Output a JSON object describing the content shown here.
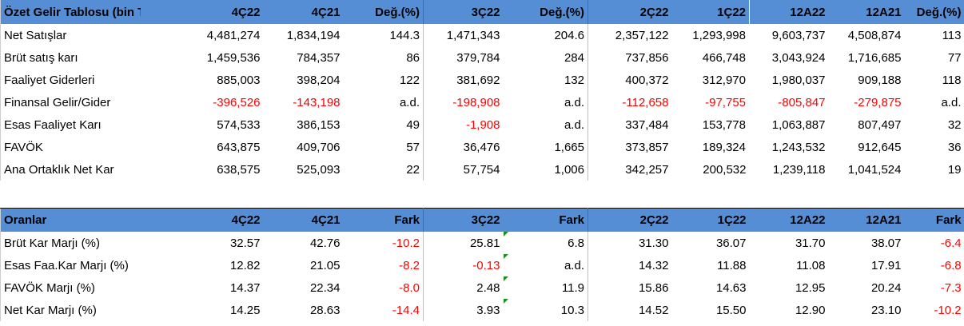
{
  "income": {
    "headers": [
      "Özet Gelir Tablosu (bin TL)",
      "4Ç22",
      "4Ç21",
      "Değ.(%)",
      "3Ç22",
      "Değ.(%)",
      "2Ç22",
      "1Ç22",
      "12A22",
      "12A21",
      "Değ.(%)"
    ],
    "rows": [
      [
        "Net Satışlar",
        "4,481,274",
        "1,834,194",
        "144.3",
        "1,471,343",
        "204.6",
        "2,357,122",
        "1,293,998",
        "9,603,737",
        "4,508,874",
        "113"
      ],
      [
        "Brüt satış karı",
        "1,459,536",
        "784,357",
        "86",
        "379,784",
        "284",
        "737,856",
        "466,748",
        "3,043,924",
        "1,716,685",
        "77"
      ],
      [
        "Faaliyet Giderleri",
        "885,003",
        "398,204",
        "122",
        "381,692",
        "132",
        "400,372",
        "312,970",
        "1,980,037",
        "909,188",
        "118"
      ],
      [
        "Finansal Gelir/Gider",
        "-396,526",
        "-143,198",
        "a.d.",
        "-198,908",
        "a.d.",
        "-112,658",
        "-97,755",
        "-805,847",
        "-279,875",
        "a.d."
      ],
      [
        "Esas Faaliyet Karı",
        "574,533",
        "386,153",
        "49",
        "-1,908",
        "a.d.",
        "337,484",
        "153,778",
        "1,063,887",
        "807,497",
        "32"
      ],
      [
        "FAVÖK",
        "643,875",
        "409,706",
        "57",
        "36,476",
        "1,665",
        "373,857",
        "189,324",
        "1,243,532",
        "912,645",
        "36"
      ],
      [
        "Ana Ortaklık Net Kar",
        "638,575",
        "525,093",
        "22",
        "57,754",
        "1,006",
        "342,257",
        "200,532",
        "1,239,118",
        "1,041,524",
        "19"
      ]
    ]
  },
  "ratios": {
    "headers": [
      "Oranlar",
      "4Ç22",
      "4Ç21",
      "Fark",
      "3Ç22",
      "Fark",
      "2Ç22",
      "1Ç22",
      "12A22",
      "12A21",
      "Fark"
    ],
    "rows": [
      [
        "Brüt Kar Marjı (%)",
        "32.57",
        "42.76",
        "-10.2",
        "25.81",
        "6.8",
        "31.30",
        "36.07",
        "31.70",
        "38.07",
        "-6.4"
      ],
      [
        "Esas Faa.Kar Marjı (%)",
        "12.82",
        "21.05",
        "-8.2",
        "-0.13",
        "a.d.",
        "14.32",
        "11.88",
        "11.08",
        "17.91",
        "-6.8"
      ],
      [
        "FAVÖK Marjı (%)",
        "14.37",
        "22.34",
        "-8.0",
        "2.48",
        "11.9",
        "15.86",
        "14.63",
        "12.95",
        "20.24",
        "-7.3"
      ],
      [
        "Net Kar Marjı (%)",
        "14.25",
        "28.63",
        "-14.4",
        "3.93",
        "10.3",
        "14.52",
        "15.50",
        "12.90",
        "23.10",
        "-10.2"
      ]
    ]
  },
  "colors": {
    "header_bg": "#558ed5",
    "negative": "#ff0000",
    "comment_marker": "#1f8f1f"
  }
}
